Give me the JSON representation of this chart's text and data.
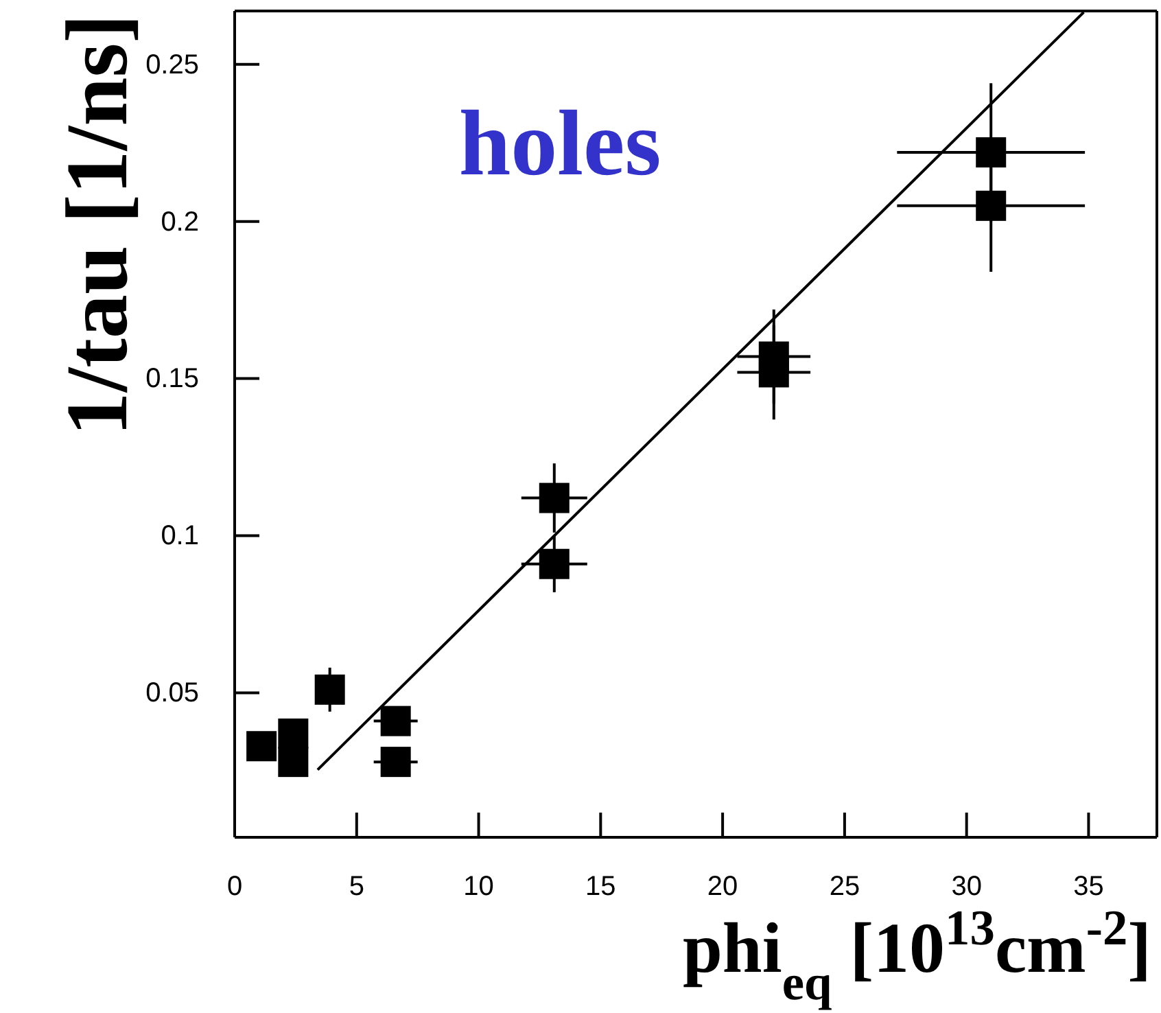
{
  "chart_data": {
    "type": "scatter",
    "title": "holes",
    "xlabel": "phi$_{eq}$ [10$^{13}$cm$^{-2}$]",
    "ylabel": "1/tau [1/ns]",
    "xlim": [
      0,
      37.8
    ],
    "ylim": [
      0.004,
      0.267
    ],
    "xticks": [
      0,
      5,
      10,
      15,
      20,
      25,
      30,
      35
    ],
    "yticks": [
      0.05,
      0.1,
      0.15,
      0.2,
      0.25
    ],
    "grid": false,
    "marker": "square",
    "series": [
      {
        "color": "#000000",
        "x": [
          1.1,
          2.4,
          2.4,
          3.9,
          6.6,
          6.6,
          13.1,
          13.1,
          22.1,
          22.1,
          31.0,
          31.0
        ],
        "values": [
          0.033,
          0.037,
          0.028,
          0.051,
          0.041,
          0.028,
          0.112,
          0.091,
          0.157,
          0.152,
          0.222,
          0.205
        ],
        "errors": [
          null,
          null,
          null,
          0.007,
          null,
          null,
          0.011,
          0.009,
          0.015,
          0.015,
          0.022,
          0.021
        ],
        "xerrors": [
          null,
          null,
          null,
          null,
          0.9,
          0.9,
          1.35,
          1.35,
          1.5,
          1.5,
          3.85,
          3.85
        ]
      },
      {
        "type": "line",
        "color": "#000000",
        "x": [
          3.4,
          34.8
        ],
        "values": [
          0.0255,
          0.2666
        ],
        "line_style": "solid",
        "marker": "none"
      }
    ]
  }
}
